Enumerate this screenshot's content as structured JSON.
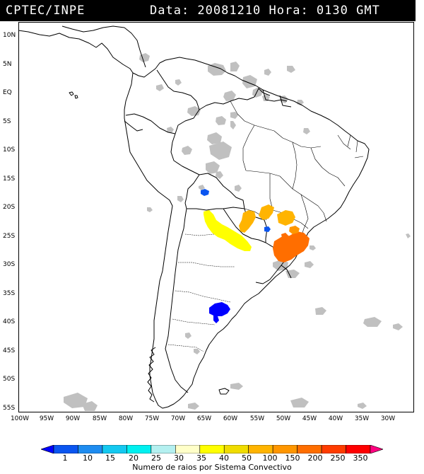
{
  "header": {
    "left": "CPTEC/INPE",
    "right": "Data: 20081210 Hora: 0130 GMT"
  },
  "axes": {
    "lat_labels": [
      "10N",
      "5N",
      "EQ",
      "5S",
      "10S",
      "15S",
      "20S",
      "25S",
      "30S",
      "35S",
      "40S",
      "45S",
      "50S",
      "55S"
    ],
    "lat_values": [
      10,
      5,
      0,
      -5,
      -10,
      -15,
      -20,
      -25,
      -30,
      -35,
      -40,
      -45,
      -50,
      -55
    ],
    "lon_labels": [
      "100W",
      "95W",
      "90W",
      "85W",
      "80W",
      "75W",
      "70W",
      "65W",
      "60W",
      "55W",
      "50W",
      "45W",
      "40W",
      "35W",
      "30W"
    ],
    "lon_values": [
      -100,
      -95,
      -90,
      -85,
      -80,
      -75,
      -70,
      -65,
      -60,
      -55,
      -50,
      -45,
      -40,
      -35,
      -30
    ],
    "lon_range": [
      -100,
      -26.5
    ],
    "lat_range": [
      -55.9,
      12.6
    ]
  },
  "legend": {
    "labels": [
      "1",
      "10",
      "15",
      "20",
      "25",
      "30",
      "35",
      "40",
      "50",
      "100",
      "150",
      "200",
      "250",
      "350"
    ],
    "colors": [
      "#0000ff",
      "#0a55f0",
      "#1e8cf0",
      "#14c8f0",
      "#00f0f0",
      "#b4f0f0",
      "#ffffc8",
      "#ffff00",
      "#f0dc00",
      "#ffb400",
      "#ff9600",
      "#ff6e00",
      "#ff3c00",
      "#ff0000",
      "#ff0080"
    ],
    "caption": "Numero de raios por Sistema Convectivo"
  },
  "colors": {
    "land_outline": "#000000",
    "clouds": "#c0c0c0",
    "header_bg": "#000000",
    "header_text": "#ffffff"
  }
}
